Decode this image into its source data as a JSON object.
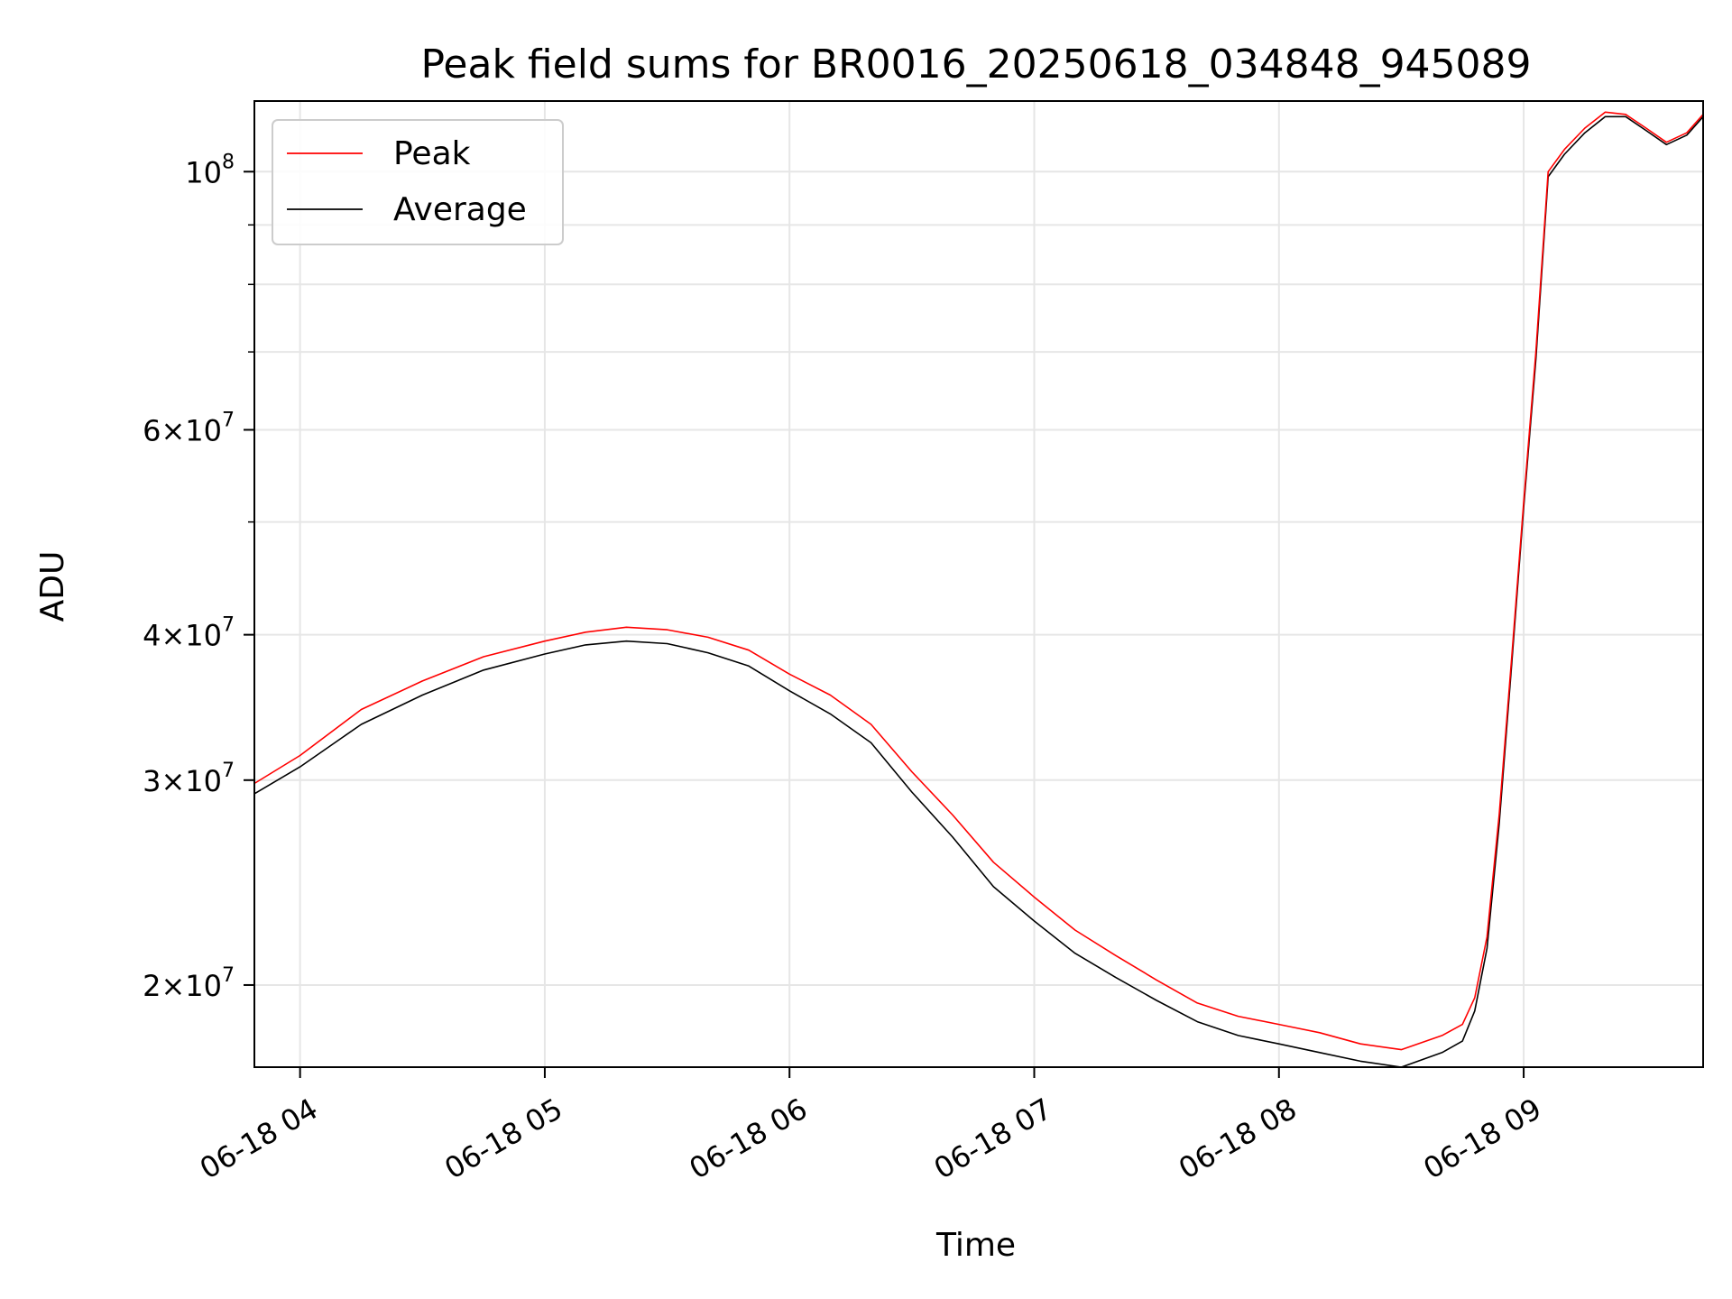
{
  "chart_data": {
    "type": "line",
    "title": "Peak field sums for BR0016_20250618_034848_945089",
    "xlabel": "Time",
    "ylabel": "ADU",
    "x_range": [
      "06-18 03:48:48",
      "06-18 09:44:00"
    ],
    "ylim": [
      17000000,
      115000000
    ],
    "y_scale": "log",
    "grid": true,
    "legend_position": "top-left",
    "x_ticks": [
      {
        "value": "06-18 04:00",
        "label": "06-18 04"
      },
      {
        "value": "06-18 05:00",
        "label": "06-18 05"
      },
      {
        "value": "06-18 06:00",
        "label": "06-18 06"
      },
      {
        "value": "06-18 07:00",
        "label": "06-18 07"
      },
      {
        "value": "06-18 08:00",
        "label": "06-18 08"
      },
      {
        "value": "06-18 09:00",
        "label": "06-18 09"
      }
    ],
    "y_ticks": [
      {
        "value": 20000000,
        "mantissa": "2",
        "exponent": "7"
      },
      {
        "value": 30000000,
        "mantissa": "3",
        "exponent": "7"
      },
      {
        "value": 40000000,
        "mantissa": "4",
        "exponent": "7"
      },
      {
        "value": 60000000,
        "mantissa": "6",
        "exponent": "7"
      },
      {
        "value": 100000000,
        "mantissa": "10",
        "exponent": "8"
      }
    ],
    "y_minor_ticks": [
      50000000,
      70000000,
      80000000,
      90000000
    ],
    "series": [
      {
        "name": "Peak",
        "color": "#ff0000",
        "points": [
          [
            "06-18 03:48:48",
            29800000
          ],
          [
            "06-18 04:00",
            31500000
          ],
          [
            "06-18 04:15",
            34500000
          ],
          [
            "06-18 04:30",
            36500000
          ],
          [
            "06-18 04:45",
            38300000
          ],
          [
            "06-18 05:00",
            39500000
          ],
          [
            "06-18 05:10",
            40200000
          ],
          [
            "06-18 05:20",
            40600000
          ],
          [
            "06-18 05:30",
            40400000
          ],
          [
            "06-18 05:40",
            39800000
          ],
          [
            "06-18 05:50",
            38800000
          ],
          [
            "06-18 06:00",
            37000000
          ],
          [
            "06-18 06:10",
            35500000
          ],
          [
            "06-18 06:20",
            33500000
          ],
          [
            "06-18 06:30",
            30500000
          ],
          [
            "06-18 06:40",
            28000000
          ],
          [
            "06-18 06:50",
            25500000
          ],
          [
            "06-18 07:00",
            23800000
          ],
          [
            "06-18 07:10",
            22300000
          ],
          [
            "06-18 07:20",
            21200000
          ],
          [
            "06-18 07:30",
            20200000
          ],
          [
            "06-18 07:40",
            19300000
          ],
          [
            "06-18 07:50",
            18800000
          ],
          [
            "06-18 08:00",
            18500000
          ],
          [
            "06-18 08:10",
            18200000
          ],
          [
            "06-18 08:20",
            17800000
          ],
          [
            "06-18 08:30",
            17600000
          ],
          [
            "06-18 08:40",
            18100000
          ],
          [
            "06-18 08:45",
            18500000
          ],
          [
            "06-18 08:48",
            19500000
          ],
          [
            "06-18 08:51",
            22000000
          ],
          [
            "06-18 08:54",
            28000000
          ],
          [
            "06-18 08:57",
            38000000
          ],
          [
            "06-18 09:00",
            52000000
          ],
          [
            "06-18 09:03",
            70000000
          ],
          [
            "06-18 09:06",
            100000000
          ],
          [
            "06-18 09:10",
            104500000
          ],
          [
            "06-18 09:15",
            109000000
          ],
          [
            "06-18 09:20",
            112500000
          ],
          [
            "06-18 09:25",
            112000000
          ],
          [
            "06-18 09:30",
            109000000
          ],
          [
            "06-18 09:35",
            106000000
          ],
          [
            "06-18 09:40",
            108000000
          ],
          [
            "06-18 09:44",
            112000000
          ]
        ]
      },
      {
        "name": "Average",
        "color": "#000000",
        "points": [
          [
            "06-18 03:48:48",
            29200000
          ],
          [
            "06-18 04:00",
            30800000
          ],
          [
            "06-18 04:15",
            33500000
          ],
          [
            "06-18 04:30",
            35500000
          ],
          [
            "06-18 04:45",
            37300000
          ],
          [
            "06-18 05:00",
            38500000
          ],
          [
            "06-18 05:10",
            39200000
          ],
          [
            "06-18 05:20",
            39500000
          ],
          [
            "06-18 05:30",
            39300000
          ],
          [
            "06-18 05:40",
            38600000
          ],
          [
            "06-18 05:50",
            37600000
          ],
          [
            "06-18 06:00",
            35800000
          ],
          [
            "06-18 06:10",
            34200000
          ],
          [
            "06-18 06:20",
            32300000
          ],
          [
            "06-18 06:30",
            29300000
          ],
          [
            "06-18 06:40",
            26800000
          ],
          [
            "06-18 06:50",
            24300000
          ],
          [
            "06-18 07:00",
            22700000
          ],
          [
            "06-18 07:10",
            21300000
          ],
          [
            "06-18 07:20",
            20300000
          ],
          [
            "06-18 07:30",
            19400000
          ],
          [
            "06-18 07:40",
            18600000
          ],
          [
            "06-18 07:50",
            18100000
          ],
          [
            "06-18 08:00",
            17800000
          ],
          [
            "06-18 08:10",
            17500000
          ],
          [
            "06-18 08:20",
            17200000
          ],
          [
            "06-18 08:30",
            17000000
          ],
          [
            "06-18 08:40",
            17500000
          ],
          [
            "06-18 08:45",
            17900000
          ],
          [
            "06-18 08:48",
            19000000
          ],
          [
            "06-18 08:51",
            21500000
          ],
          [
            "06-18 08:54",
            27500000
          ],
          [
            "06-18 08:57",
            37500000
          ],
          [
            "06-18 09:00",
            51500000
          ],
          [
            "06-18 09:03",
            69000000
          ],
          [
            "06-18 09:06",
            99000000
          ],
          [
            "06-18 09:10",
            103500000
          ],
          [
            "06-18 09:15",
            108000000
          ],
          [
            "06-18 09:20",
            111500000
          ],
          [
            "06-18 09:25",
            111500000
          ],
          [
            "06-18 09:30",
            108500000
          ],
          [
            "06-18 09:35",
            105500000
          ],
          [
            "06-18 09:40",
            107500000
          ],
          [
            "06-18 09:44",
            111500000
          ]
        ]
      }
    ]
  }
}
